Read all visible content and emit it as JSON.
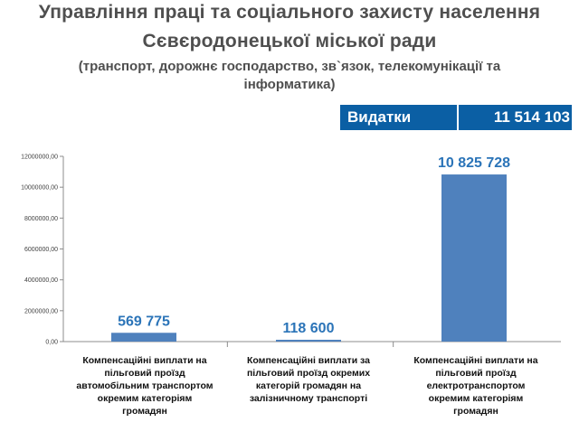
{
  "header": {
    "line1": "Управління праці та соціального захисту населення",
    "line2": "Сєвєродонецької міської ради",
    "line3": "(транспорт, дорожнє господарство, зв`язок, телекомунікації та",
    "line4": "інформатика)"
  },
  "expense": {
    "label": "Видатки",
    "value": "11 514 103"
  },
  "colors": {
    "bar": "#4f81bd",
    "data_label": "#2b74b8",
    "header_box": "#0b5fa4"
  },
  "chart_data": {
    "type": "bar",
    "title": "",
    "xlabel": "",
    "ylabel": "",
    "categories": [
      "Компенсаційні виплати на пільговий проїзд автомобільним транспортом окремим категоріям громадян",
      "Компенсаційні виплати за пільговий проїзд окремих категорій громадян на залізничному транспорті",
      "Компенсаційні виплати на пільговий проїзд електротранспортом окремим категоріям громадян"
    ],
    "category_lines": [
      [
        "Компенсаційні виплати на",
        "пільговий проїзд",
        "автомобільним транспортом",
        "окремим категоріям",
        "громадян"
      ],
      [
        "Компенсаційні виплати за",
        "пільговий проїзд окремих",
        "категорій громадян на",
        "залізничному транспорті"
      ],
      [
        "Компенсаційні виплати на",
        "пільговий проїзд",
        "електротранспортом",
        "окремим категоріям",
        "громадян"
      ]
    ],
    "values": [
      569775,
      118600,
      10825728
    ],
    "data_labels": [
      "569 775",
      "118 600",
      "10 825 728"
    ],
    "ylim": [
      0,
      12000000
    ],
    "yticks": [
      0,
      2000000,
      4000000,
      6000000,
      8000000,
      10000000,
      12000000
    ],
    "ytick_labels": [
      "0,00",
      "2000000,00",
      "4000000,00",
      "6000000,00",
      "8000000,00",
      "10000000,00",
      "12000000,00"
    ],
    "grid": false,
    "legend": "none"
  }
}
